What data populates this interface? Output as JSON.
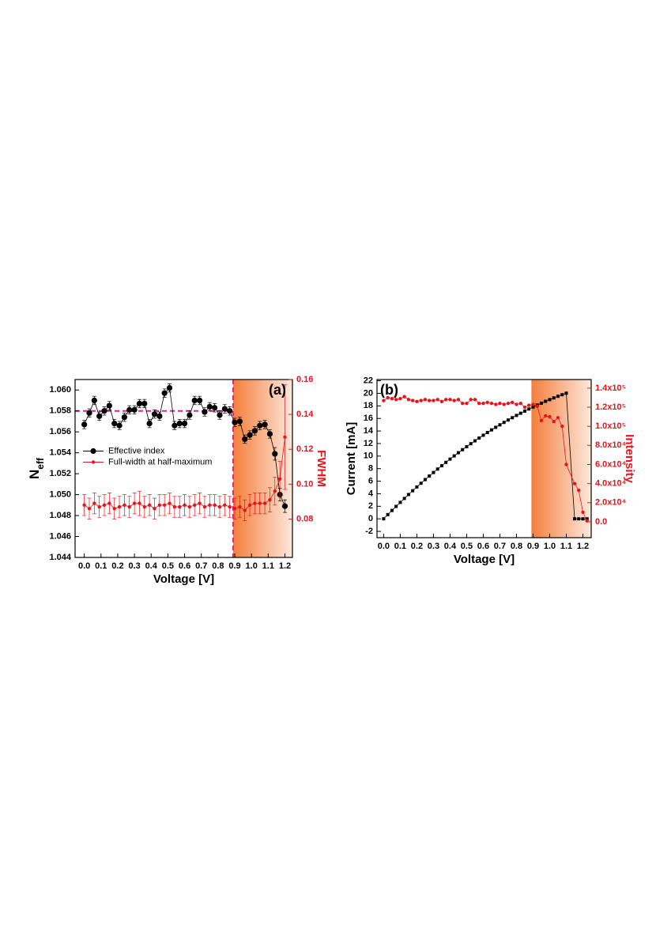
{
  "chart_data": [
    {
      "type": "scatter",
      "annotation": "(a)",
      "xlabel": "Voltage [V]",
      "ylabel": {
        "main": "N",
        "sub": "eff"
      },
      "y2label": "FWHM",
      "legend": "center left",
      "xlim": [
        -0.055,
        1.245
      ],
      "ylim": [
        1.044,
        1.061
      ],
      "y2lim": [
        0.058,
        0.16
      ],
      "xticks": [
        {
          "value": 0,
          "label": "0.0"
        },
        0.1,
        0.2,
        0.3,
        0.4,
        0.5,
        0.6,
        0.7,
        0.8,
        0.9,
        {
          "value": 1,
          "label": "1.0"
        },
        1.1,
        1.2
      ],
      "yticks": [
        1.044,
        1.046,
        1.048,
        {
          "value": 1.05,
          "label": "1.050"
        },
        1.052,
        1.054,
        1.056,
        1.058,
        {
          "value": 1.06,
          "label": "1.060"
        }
      ],
      "y2ticks": [
        0.08,
        {
          "value": 0.1,
          "label": "0.10"
        },
        0.12,
        0.14,
        0.16
      ],
      "shaded_xrange": [
        0.89,
        1.245
      ],
      "reference_lines": {
        "y": 1.058,
        "x": 0.89,
        "color": "#e0218a"
      },
      "x": [
        0,
        0.03,
        0.06,
        0.09,
        0.12,
        0.15,
        0.18,
        0.21,
        0.24,
        0.27,
        0.3,
        0.33,
        0.36,
        0.39,
        0.42,
        0.45,
        0.48,
        0.51,
        0.54,
        0.57,
        0.6,
        0.63,
        0.66,
        0.69,
        0.72,
        0.75,
        0.78,
        0.81,
        0.84,
        0.87,
        0.9,
        0.93,
        0.96,
        0.99,
        1.02,
        1.05,
        1.08,
        1.11,
        1.14,
        1.17,
        1.2
      ],
      "series": [
        {
          "name": "Effective index",
          "color": "#000000",
          "marker": "circle",
          "values": [
            1.0567,
            1.0578,
            1.059,
            1.0575,
            1.058,
            1.0585,
            1.0568,
            1.0566,
            1.0574,
            1.0581,
            1.0581,
            1.0587,
            1.0587,
            1.0568,
            1.0577,
            1.0575,
            1.0597,
            1.0602,
            1.0566,
            1.0568,
            1.0568,
            1.0576,
            1.059,
            1.059,
            1.0579,
            1.0584,
            1.0583,
            1.0576,
            1.0582,
            1.058,
            1.0569,
            1.057,
            1.0553,
            1.0557,
            1.0561,
            1.0566,
            1.0567,
            1.0558,
            1.0539,
            1.05,
            1.0489
          ],
          "errors": [
            0.0004,
            0.0004,
            0.0004,
            0.0004,
            0.0004,
            0.0004,
            0.0004,
            0.0004,
            0.0004,
            0.0004,
            0.0004,
            0.0004,
            0.0004,
            0.0004,
            0.0004,
            0.0004,
            0.0004,
            0.0004,
            0.0004,
            0.0004,
            0.0004,
            0.0004,
            0.0004,
            0.0004,
            0.0004,
            0.0004,
            0.0004,
            0.0004,
            0.0004,
            0.0004,
            0.0004,
            0.0004,
            0.0004,
            0.0004,
            0.0004,
            0.0004,
            0.0004,
            0.0004,
            0.0006,
            0.0006,
            0.0006
          ]
        },
        {
          "name": "Full-width at half-maximum",
          "color": "#e8141c",
          "marker": "circle",
          "axis": "y2",
          "values": [
            0.088,
            0.086,
            0.089,
            0.087,
            0.088,
            0.089,
            0.086,
            0.087,
            0.088,
            0.087,
            0.089,
            0.089,
            0.087,
            0.088,
            0.086,
            0.088,
            0.088,
            0.089,
            0.087,
            0.087,
            0.088,
            0.087,
            0.088,
            0.089,
            0.087,
            0.088,
            0.088,
            0.087,
            0.088,
            0.087,
            0.086,
            0.087,
            0.085,
            0.088,
            0.089,
            0.089,
            0.089,
            0.091,
            0.096,
            0.103,
            0.127
          ],
          "errors": [
            0.006,
            0.006,
            0.006,
            0.006,
            0.006,
            0.006,
            0.006,
            0.006,
            0.006,
            0.006,
            0.006,
            0.007,
            0.006,
            0.006,
            0.006,
            0.006,
            0.006,
            0.006,
            0.006,
            0.006,
            0.006,
            0.006,
            0.006,
            0.006,
            0.006,
            0.006,
            0.006,
            0.006,
            0.006,
            0.006,
            0.006,
            0.006,
            0.006,
            0.006,
            0.006,
            0.006,
            0.006,
            0.007,
            0.008,
            0.01,
            0.03
          ]
        }
      ]
    },
    {
      "type": "scatter",
      "annotation": "(b)",
      "xlabel": "Voltage [V]",
      "ylabel": "Current [mA]",
      "y2label": "Intensity",
      "legend": "none",
      "xlim": [
        -0.04,
        1.25
      ],
      "ylim": [
        -3,
        22.2
      ],
      "y2lim": [
        -16600,
        149000
      ],
      "xticks": [
        {
          "value": 0,
          "label": "0.0"
        },
        0.1,
        0.2,
        0.3,
        0.4,
        0.5,
        0.6,
        0.7,
        0.8,
        0.9,
        {
          "value": 1,
          "label": "1.0"
        },
        1.1,
        1.2
      ],
      "yticks": [
        -2,
        0,
        2,
        4,
        6,
        8,
        10,
        12,
        14,
        16,
        18,
        20,
        22
      ],
      "y2ticks": [
        {
          "value": 0,
          "label": "0.0"
        },
        {
          "value": 20000,
          "label": "2.0x10⁴"
        },
        {
          "value": 40000,
          "label": "4.0x10⁴"
        },
        {
          "value": 60000,
          "label": "6.0x10⁴"
        },
        {
          "value": 80000,
          "label": "8.0x10⁴"
        },
        {
          "value": 100000,
          "label": "1.0x10⁵"
        },
        {
          "value": 120000,
          "label": "1.2x10⁵"
        },
        {
          "value": 140000,
          "label": "1.4x10⁵"
        }
      ],
      "shaded_xrange": [
        0.89,
        1.25
      ],
      "series": [
        {
          "color": "#000000",
          "marker": "square",
          "x": [
            0,
            0.025,
            0.05,
            0.075,
            0.1,
            0.125,
            0.15,
            0.175,
            0.2,
            0.225,
            0.25,
            0.275,
            0.3,
            0.325,
            0.35,
            0.375,
            0.4,
            0.425,
            0.45,
            0.475,
            0.5,
            0.525,
            0.55,
            0.575,
            0.6,
            0.625,
            0.65,
            0.675,
            0.7,
            0.725,
            0.75,
            0.775,
            0.8,
            0.825,
            0.85,
            0.875,
            0.9,
            0.925,
            0.95,
            0.975,
            1,
            1.025,
            1.05,
            1.075,
            1.1,
            1.15,
            1.175,
            1.2,
            1.225
          ],
          "values": [
            0,
            0.67,
            1.33,
            1.98,
            2.62,
            3.25,
            3.87,
            4.48,
            5.08,
            5.67,
            6.25,
            6.82,
            7.38,
            7.93,
            8.47,
            9,
            9.52,
            10.03,
            10.53,
            11.02,
            11.5,
            11.97,
            12.43,
            12.88,
            13.32,
            13.75,
            14.17,
            14.58,
            14.98,
            15.37,
            15.75,
            16.12,
            16.48,
            16.83,
            17.17,
            17.5,
            17.82,
            18.13,
            18.43,
            18.73,
            19,
            19.27,
            19.53,
            19.78,
            20.02,
            0,
            0,
            0,
            0
          ]
        },
        {
          "color": "#e8141c",
          "marker": "circle",
          "axis": "y2",
          "x": [
            0,
            0.025,
            0.05,
            0.075,
            0.1,
            0.125,
            0.15,
            0.175,
            0.2,
            0.225,
            0.25,
            0.275,
            0.3,
            0.325,
            0.35,
            0.375,
            0.4,
            0.425,
            0.45,
            0.475,
            0.5,
            0.525,
            0.55,
            0.575,
            0.6,
            0.625,
            0.65,
            0.675,
            0.7,
            0.725,
            0.75,
            0.775,
            0.8,
            0.825,
            0.85,
            0.875,
            0.9,
            0.925,
            0.95,
            0.975,
            1,
            1.025,
            1.05,
            1.075,
            1.1,
            1.15,
            1.175,
            1.2,
            1.225
          ],
          "values": [
            127000,
            130000,
            129000,
            128000,
            129000,
            131000,
            128000,
            127000,
            126000,
            127000,
            128000,
            127000,
            127000,
            128000,
            126000,
            128000,
            128000,
            127000,
            128000,
            124000,
            124000,
            128000,
            128000,
            124000,
            124000,
            125000,
            124000,
            123000,
            124000,
            123000,
            124000,
            125000,
            123000,
            124000,
            120000,
            122000,
            123000,
            121000,
            106000,
            111000,
            110000,
            105000,
            109000,
            100000,
            60000,
            40000,
            33000,
            10000,
            1000
          ]
        }
      ]
    }
  ]
}
